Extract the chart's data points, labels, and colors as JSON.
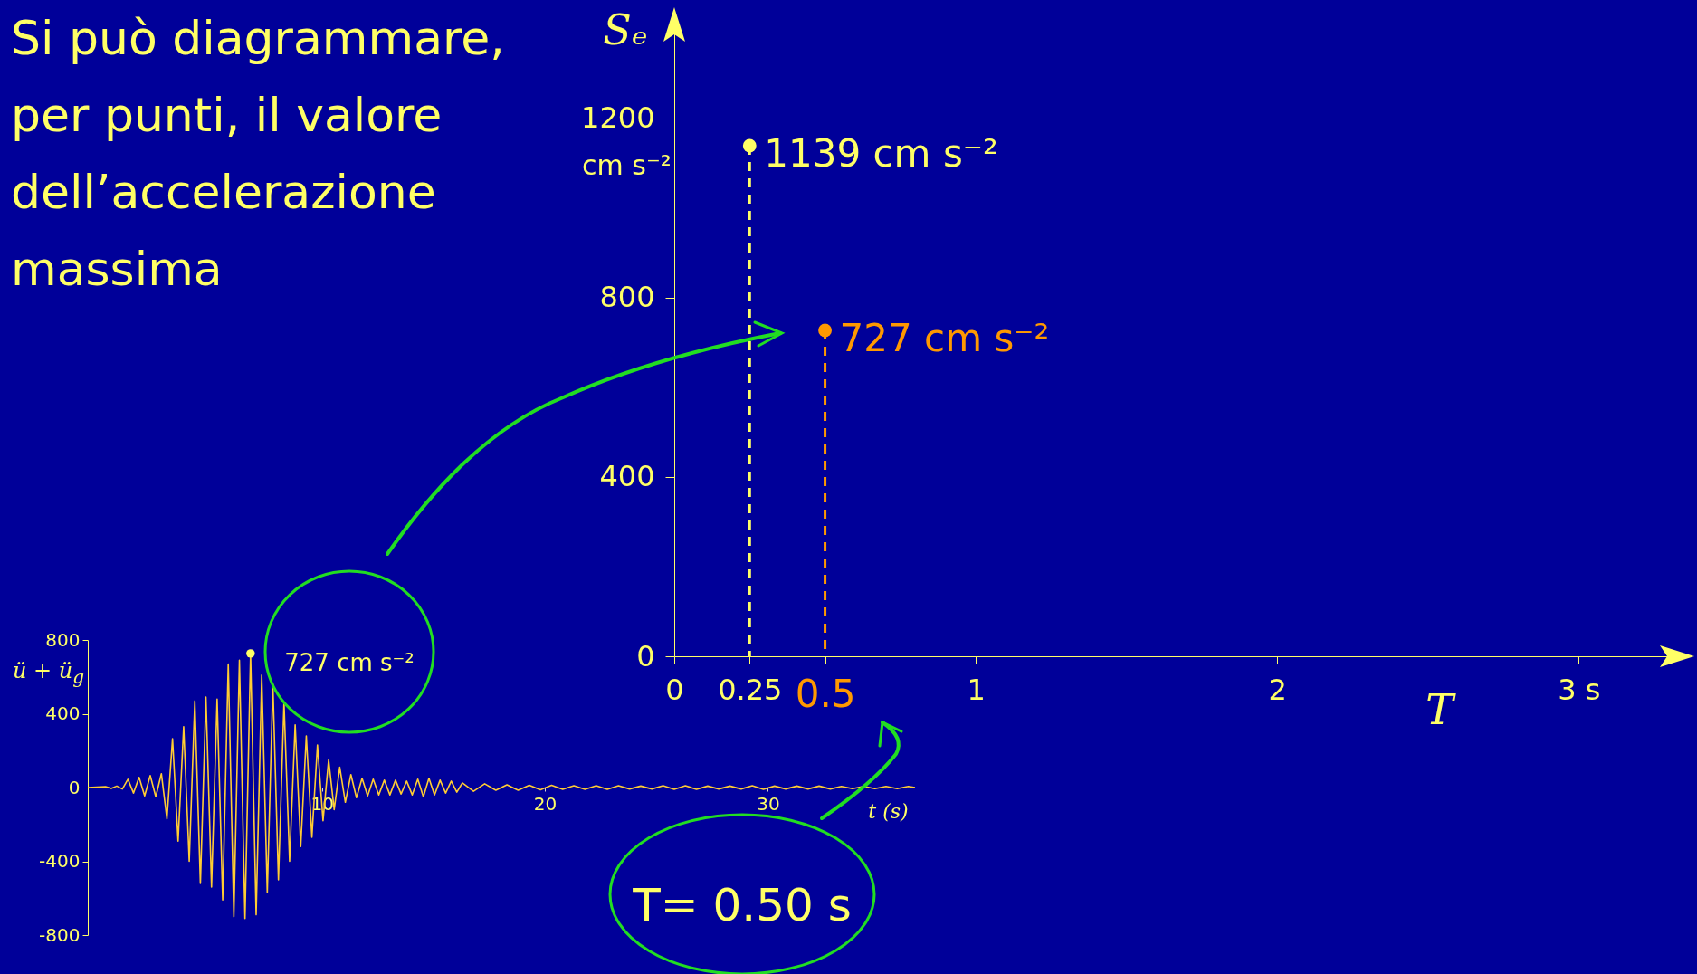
{
  "chart_data": [
    {
      "type": "lollipop",
      "title": "Si può diagrammare, per punti, il valore dell’accelerazione massima",
      "xlabel": "T",
      "ylabel": "Sₑ",
      "xlim": [
        0,
        3.35
      ],
      "ylim": [
        0,
        1440
      ],
      "xticks": [
        0,
        0.25,
        0.5,
        1,
        2,
        {
          "value": 3,
          "label": "3 s"
        }
      ],
      "yticks": [
        0,
        400,
        800,
        1200
      ],
      "series": [
        {
          "x": [
            0.25
          ],
          "values": [
            1139
          ],
          "color": "#ffff66",
          "value_labels": [
            "1139 cm s⁻²"
          ]
        },
        {
          "x": [
            0.5
          ],
          "values": [
            727
          ],
          "color": "#ff9900",
          "value_labels": [
            "727 cm s⁻²"
          ]
        }
      ],
      "marker": "circle",
      "line_style": "dashed",
      "annotations": [
        "cm s⁻²",
        "T= 0.50 s"
      ]
    },
    {
      "type": "line",
      "xlabel": "t  (s)",
      "ylabel": "ü + ü$_{g}$",
      "xlim": [
        -0.5,
        36.6
      ],
      "ylim": [
        -800,
        800
      ],
      "xticks": [
        10,
        20,
        30
      ],
      "yticks": [
        800,
        400,
        0,
        -400,
        -800
      ],
      "series": [
        {
          "color": "#ffcc33",
          "x": [
            -0.5,
            0.3,
            0.55,
            0.8,
            1.05,
            1.3,
            1.55,
            1.8,
            2.05,
            2.3,
            2.55,
            2.8,
            3.05,
            3.3,
            3.55,
            3.8,
            4.05,
            4.3,
            4.55,
            4.8,
            5.05,
            5.3,
            5.55,
            5.8,
            6.05,
            6.3,
            6.55,
            6.8,
            7.05,
            7.3,
            7.55,
            7.8,
            8.05,
            8.3,
            8.55,
            8.8,
            9.05,
            9.3,
            9.55,
            9.8,
            10.05,
            10.3,
            10.55,
            10.8,
            11.05,
            11.3,
            11.55,
            11.8,
            12.05,
            12.3,
            12.55,
            12.8,
            13.05,
            13.3,
            13.55,
            13.8,
            14.05,
            14.3,
            14.55,
            14.8,
            15.05,
            15.3,
            15.55,
            15.8,
            16.05,
            16.3,
            16.8,
            17.3,
            17.8,
            18.3,
            18.8,
            19.3,
            19.8,
            20.3,
            20.8,
            21.3,
            21.8,
            22.3,
            22.8,
            23.3,
            23.8,
            24.3,
            24.8,
            25.3,
            25.8,
            26.3,
            26.8,
            27.3,
            27.8,
            28.3,
            28.8,
            29.3,
            29.8,
            30.3,
            30.8,
            31.3,
            31.8,
            32.3,
            32.8,
            33.3,
            33.8,
            34.3,
            34.8,
            35.3,
            35.8,
            36.3,
            36.6
          ],
          "values": [
            0,
            5,
            -5,
            8,
            -8,
            45,
            -30,
            55,
            -45,
            65,
            -50,
            75,
            -170,
            265,
            -290,
            330,
            -400,
            470,
            -520,
            490,
            -540,
            480,
            -610,
            670,
            -700,
            690,
            -710,
            727,
            -690,
            610,
            -570,
            560,
            -500,
            460,
            -400,
            340,
            -320,
            280,
            -270,
            230,
            -180,
            150,
            -120,
            110,
            -80,
            70,
            -55,
            50,
            -45,
            45,
            -40,
            40,
            -40,
            40,
            -35,
            35,
            -40,
            45,
            -50,
            50,
            -40,
            40,
            -30,
            35,
            -25,
            25,
            -20,
            20,
            -15,
            15,
            -15,
            12,
            -12,
            12,
            -10,
            10,
            -10,
            10,
            -10,
            10,
            -8,
            8,
            -8,
            10,
            -10,
            10,
            -10,
            8,
            -8,
            8,
            -8,
            10,
            -10,
            8,
            -8,
            8,
            -8,
            8,
            -8,
            6,
            -6,
            6,
            -6,
            6,
            -6,
            6,
            0
          ]
        },
        {
          "type": "scatter",
          "marker": "circle",
          "color": "#ffff66",
          "x": [
            6.8
          ],
          "values": [
            727
          ]
        }
      ],
      "annotations": [
        "727 cm s⁻²"
      ]
    }
  ]
}
